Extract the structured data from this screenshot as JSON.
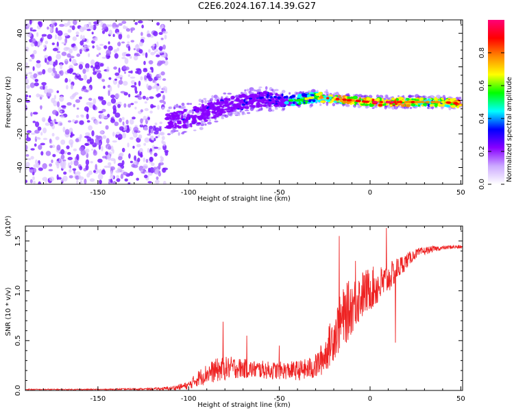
{
  "title": "C2E6.2024.167.14.39.G27",
  "colors": {
    "snr_line": "#ee2222",
    "axis": "#000000"
  },
  "chart_data": [
    {
      "type": "heatmap",
      "title": "C2E6.2024.167.14.39.G27",
      "xlabel": "Height of straight line (km)",
      "ylabel": "Frequency (Hz)",
      "xlim": [
        -190,
        51
      ],
      "ylim": [
        -50,
        48
      ],
      "xticks": [
        -150,
        -100,
        -50,
        0,
        50
      ],
      "yticks": [
        -40,
        -20,
        0,
        20,
        40
      ],
      "colorbar": {
        "label": "Normalized spectral amplitude",
        "range": [
          0.0,
          1.0
        ],
        "ticks": [
          "0.0",
          "0.2",
          "0.4",
          "0.6",
          "0.8"
        ],
        "tick_values": [
          0,
          0.2,
          0.4,
          0.6,
          0.8
        ],
        "colors": [
          "#ffffff",
          "#ccaaff",
          "#8800ff",
          "#0000ff",
          "#00ffff",
          "#00ff00",
          "#ffff00",
          "#ff8800",
          "#ff0000",
          "#ff0077"
        ]
      },
      "noise_region": {
        "x": [
          -190,
          -112
        ],
        "frequency_range": [
          -50,
          48
        ],
        "amplitude": 0.15
      },
      "signal_track": [
        {
          "x": -112,
          "frequency": -12,
          "spread": 7,
          "amplitude": 0.25
        },
        {
          "x": -100,
          "frequency": -11,
          "spread": 8,
          "amplitude": 0.3
        },
        {
          "x": -90,
          "frequency": -7,
          "spread": 7,
          "amplitude": 0.3
        },
        {
          "x": -80,
          "frequency": -3,
          "spread": 6,
          "amplitude": 0.32
        },
        {
          "x": -70,
          "frequency": -1,
          "spread": 6,
          "amplitude": 0.32
        },
        {
          "x": -60,
          "frequency": 1,
          "spread": 6,
          "amplitude": 0.33
        },
        {
          "x": -50,
          "frequency": 0,
          "spread": 5,
          "amplitude": 0.35
        },
        {
          "x": -40,
          "frequency": 0,
          "spread": 4,
          "amplitude": 0.5
        },
        {
          "x": -30,
          "frequency": 2,
          "spread": 4,
          "amplitude": 0.7
        },
        {
          "x": -20,
          "frequency": 1,
          "spread": 3,
          "amplitude": 0.8
        },
        {
          "x": -10,
          "frequency": 0,
          "spread": 3,
          "amplitude": 0.85
        },
        {
          "x": 0,
          "frequency": -1,
          "spread": 3,
          "amplitude": 0.85
        },
        {
          "x": 10,
          "frequency": -1,
          "spread": 3,
          "amplitude": 0.9
        },
        {
          "x": 20,
          "frequency": -1,
          "spread": 3,
          "amplitude": 0.8
        },
        {
          "x": 30,
          "frequency": -1,
          "spread": 3,
          "amplitude": 0.7
        },
        {
          "x": 40,
          "frequency": -1,
          "spread": 3,
          "amplitude": 0.7
        },
        {
          "x": 50,
          "frequency": -2,
          "spread": 3,
          "amplitude": 0.95
        }
      ]
    },
    {
      "type": "line",
      "xlabel": "Height of straight line (km)",
      "ylabel": "SNR (10 * v/v)",
      "y_multiplier": "(x10⁴)",
      "xlim": [
        -190,
        51
      ],
      "ylim": [
        0,
        1.65
      ],
      "xticks": [
        -150,
        -100,
        -50,
        0,
        50
      ],
      "yticks": [
        "0.0",
        "0.5",
        "1.0",
        "1.5"
      ],
      "ytick_values": [
        0,
        0.5,
        1.0,
        1.5
      ],
      "series": [
        {
          "x": [
            -190,
            -150,
            -120,
            -110,
            -100,
            -95,
            -90,
            -85,
            -80,
            -75,
            -70,
            -65,
            -60,
            -55,
            -50,
            -45,
            -40,
            -35,
            -30,
            -25,
            -20,
            -15,
            -12,
            -10,
            -5,
            0,
            5,
            10,
            15,
            20,
            25,
            30,
            35,
            40,
            45,
            51
          ],
          "y": [
            0.01,
            0.01,
            0.015,
            0.02,
            0.05,
            0.12,
            0.17,
            0.2,
            0.22,
            0.23,
            0.22,
            0.21,
            0.21,
            0.2,
            0.2,
            0.2,
            0.2,
            0.21,
            0.24,
            0.35,
            0.55,
            0.72,
            0.8,
            0.85,
            0.95,
            1.02,
            1.05,
            1.12,
            1.22,
            1.3,
            1.37,
            1.4,
            1.42,
            1.43,
            1.44,
            1.44
          ],
          "amplitude": [
            0.005,
            0.005,
            0.01,
            0.02,
            0.04,
            0.08,
            0.1,
            0.12,
            0.12,
            0.11,
            0.1,
            0.09,
            0.09,
            0.09,
            0.09,
            0.09,
            0.1,
            0.11,
            0.13,
            0.18,
            0.25,
            0.3,
            0.3,
            0.28,
            0.25,
            0.22,
            0.2,
            0.15,
            0.12,
            0.08,
            0.05,
            0.04,
            0.03,
            0.02,
            0.02,
            0.02
          ],
          "spikes": [
            {
              "x": -81,
              "y": 0.69
            },
            {
              "x": -68,
              "y": 0.55
            },
            {
              "x": -50,
              "y": 0.45
            },
            {
              "x": -17,
              "y": 1.55
            },
            {
              "x": -8,
              "y": 1.3
            },
            {
              "x": 9,
              "y": 1.63
            },
            {
              "x": 14,
              "y": 0.48
            }
          ]
        }
      ]
    }
  ]
}
